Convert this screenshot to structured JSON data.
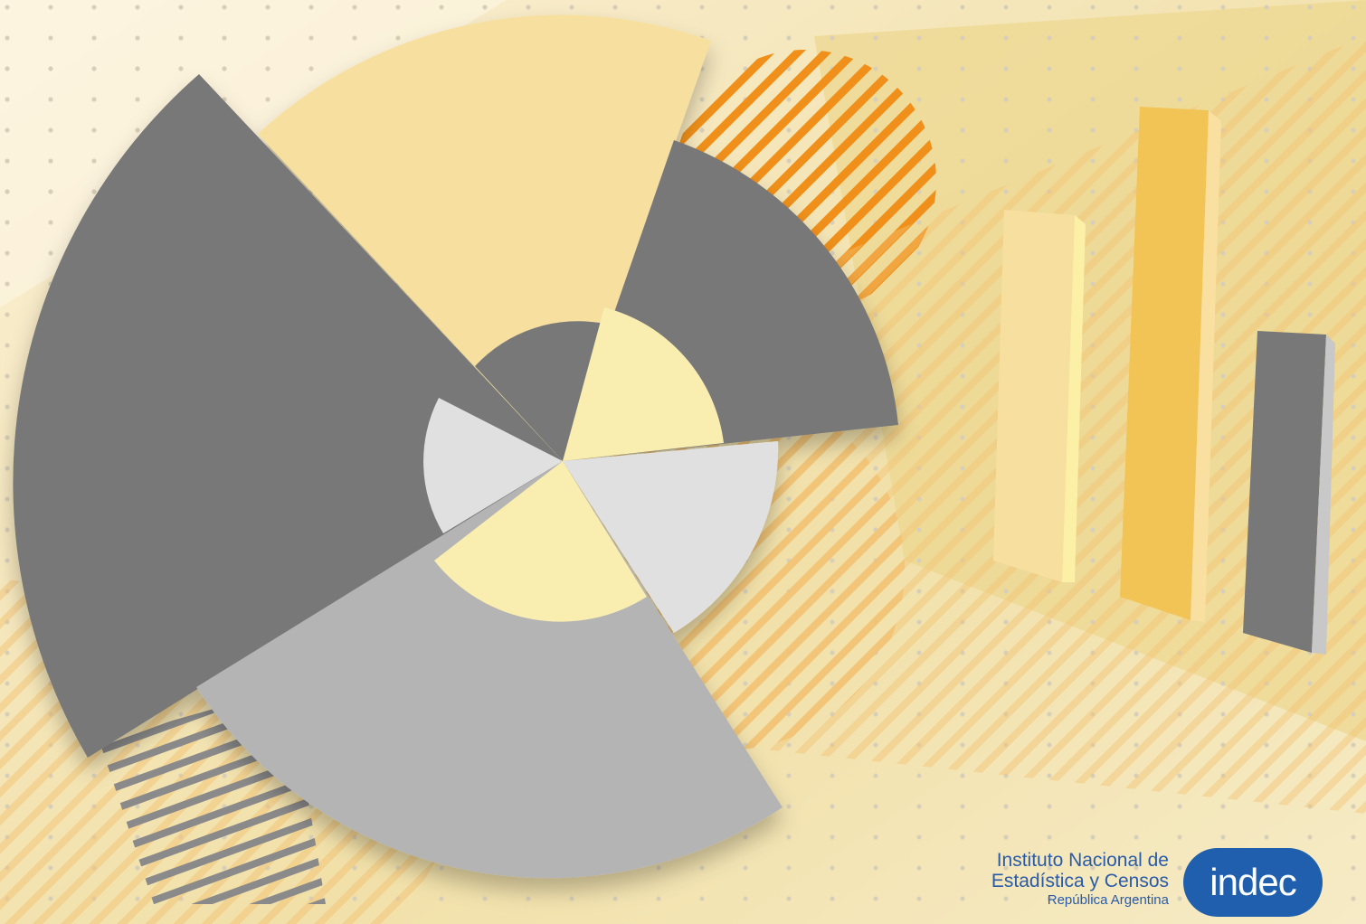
{
  "logo": {
    "lines": [
      "Instituto Nacional de",
      "Estadística y Censos"
    ],
    "subtitle": "República Argentina",
    "mark": "indec"
  }
}
